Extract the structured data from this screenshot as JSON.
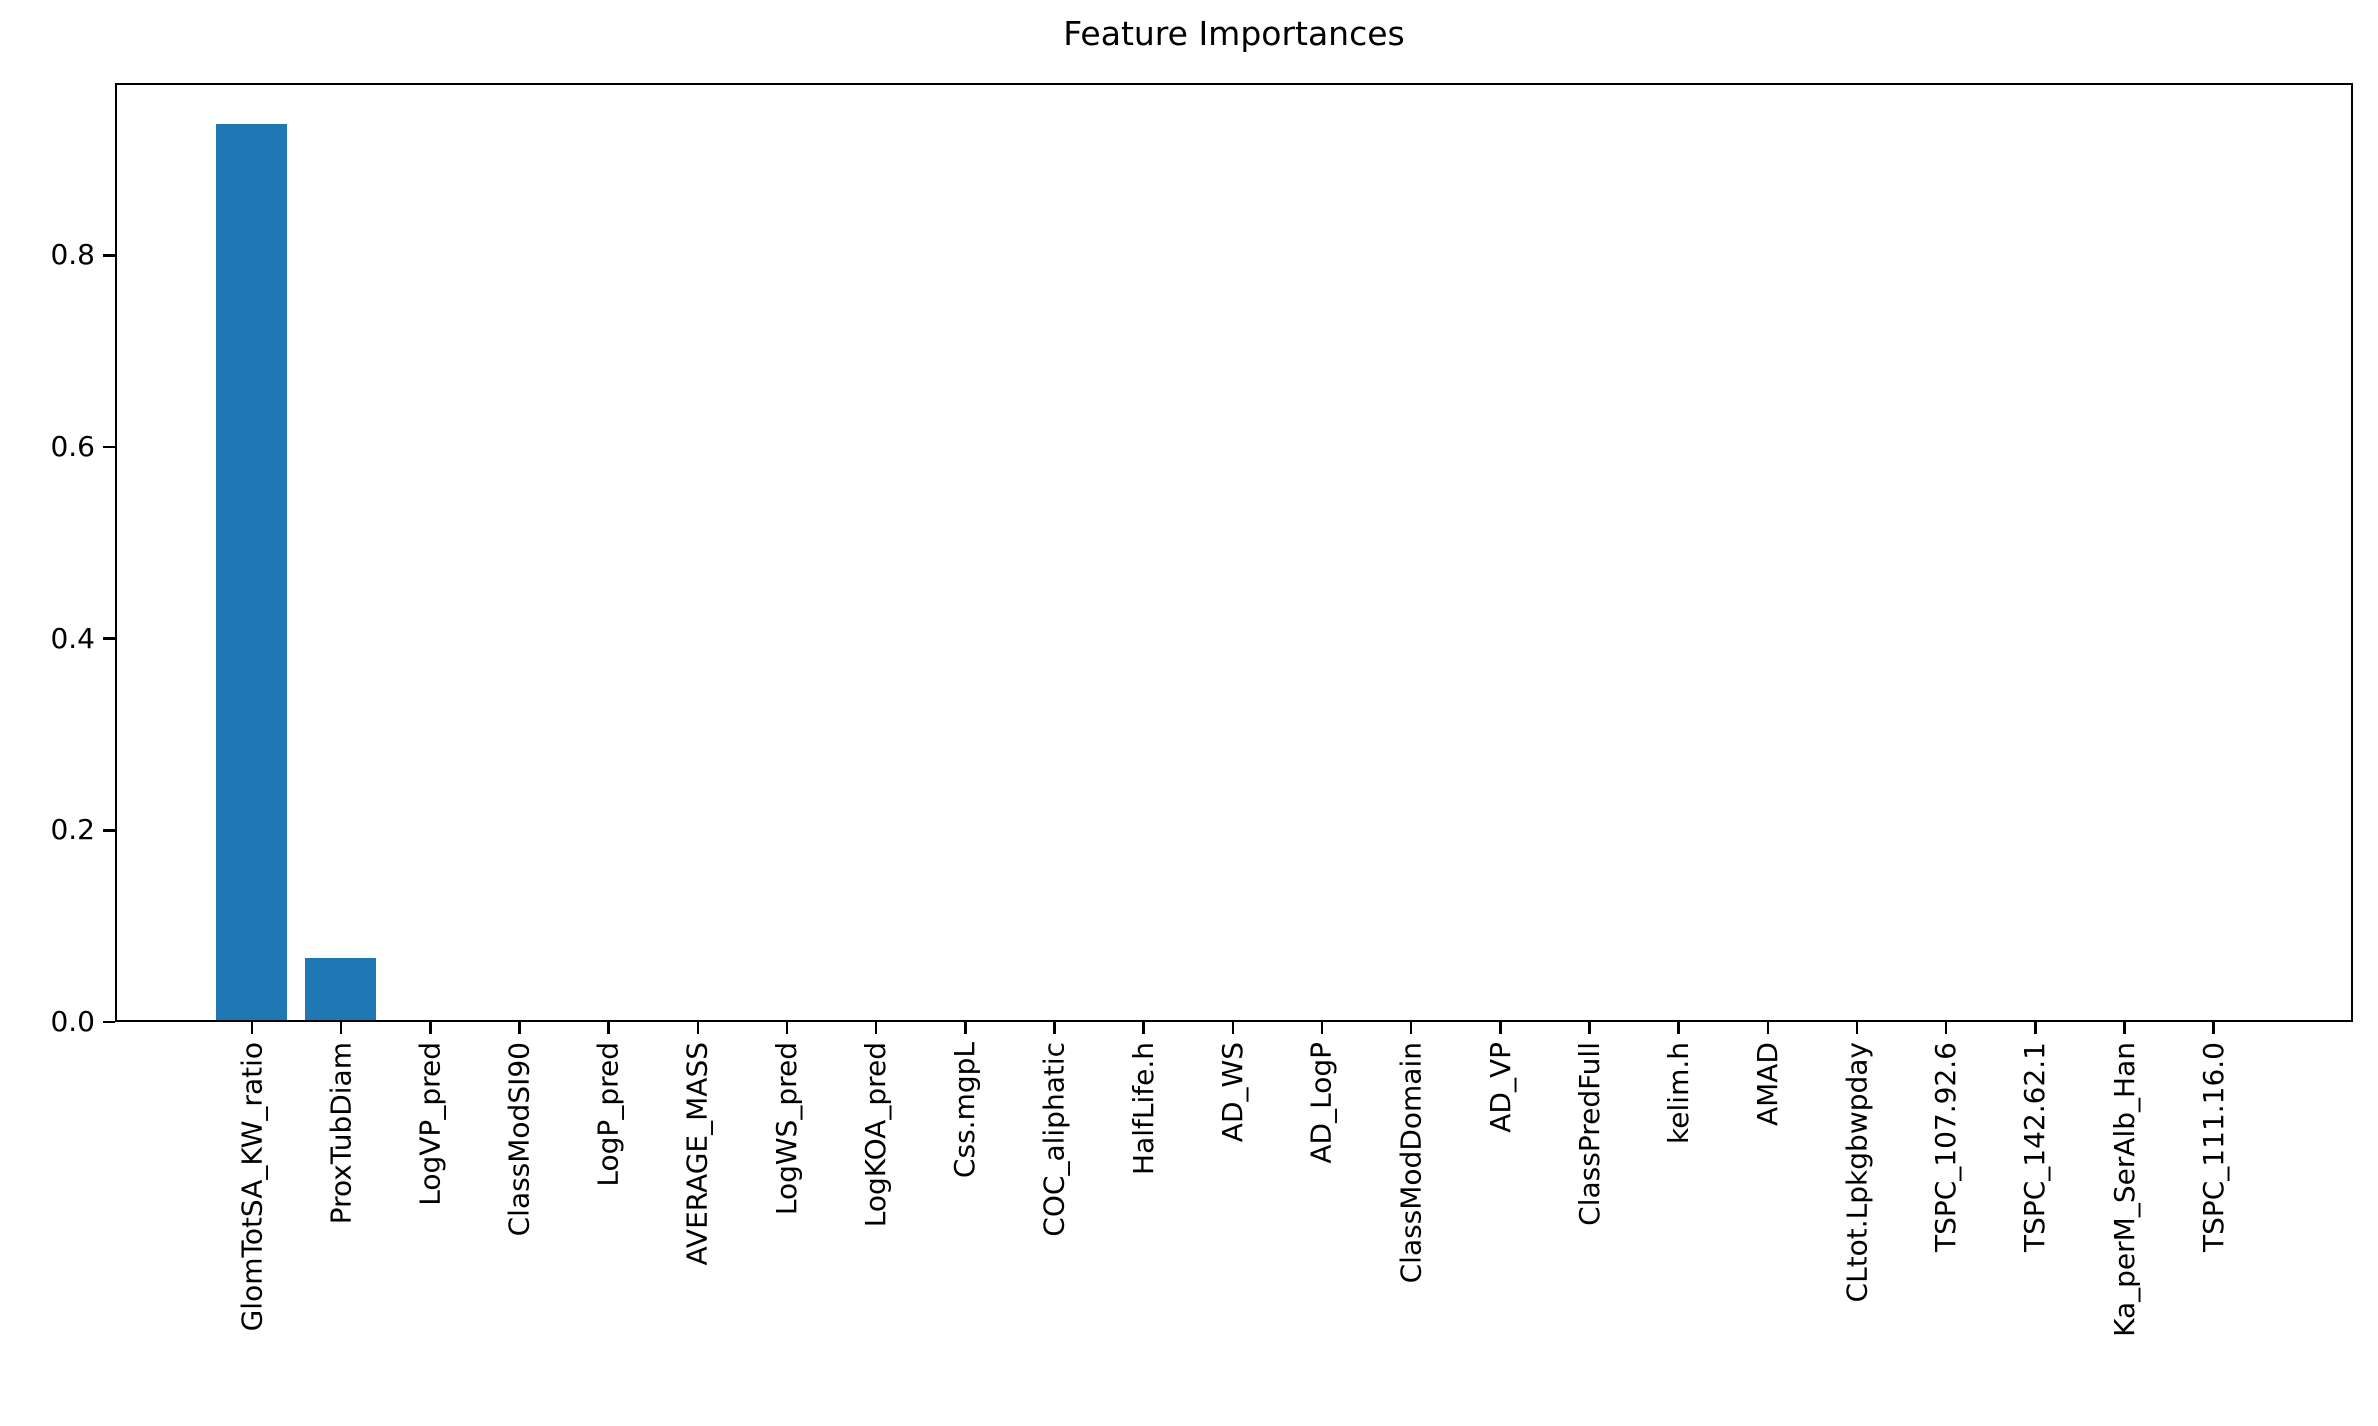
{
  "chart_data": {
    "type": "bar",
    "title": "Feature Importances",
    "categories": [
      "GlomTotSA_KW_ratio",
      "ProxTubDiam",
      "LogVP_pred",
      "ClassModSI90",
      "LogP_pred",
      "AVERAGE_MASS",
      "LogWS_pred",
      "LogKOA_pred",
      "Css.mgpL",
      "COC_aliphatic",
      "HalfLife.h",
      "AD_WS",
      "AD_LogP",
      "ClassModDomain",
      "AD_VP",
      "ClassPredFull",
      "kelim.h",
      "AMAD",
      "CLtot.Lpkgbwpday",
      "TSPC_107.92.6",
      "TSPC_142.62.1",
      "Ka_perM_SerAlb_Han",
      "TSPC_111.16.0"
    ],
    "values": [
      0.935,
      0.065,
      0,
      0,
      0,
      0,
      0,
      0,
      0,
      0,
      0,
      0,
      0,
      0,
      0,
      0,
      0,
      0,
      0,
      0,
      0,
      0,
      0
    ],
    "xlabel": "",
    "ylabel": "",
    "ylim": [
      0,
      0.98
    ],
    "yticks": [
      0.0,
      0.2,
      0.4,
      0.6,
      0.8
    ],
    "x_tick_label_rotation_deg": 90,
    "grid": false,
    "legend": false,
    "bar_color": "#1f77b4",
    "axis_color": "#000000",
    "text_color": "#000000",
    "background_color": "#ffffff"
  }
}
